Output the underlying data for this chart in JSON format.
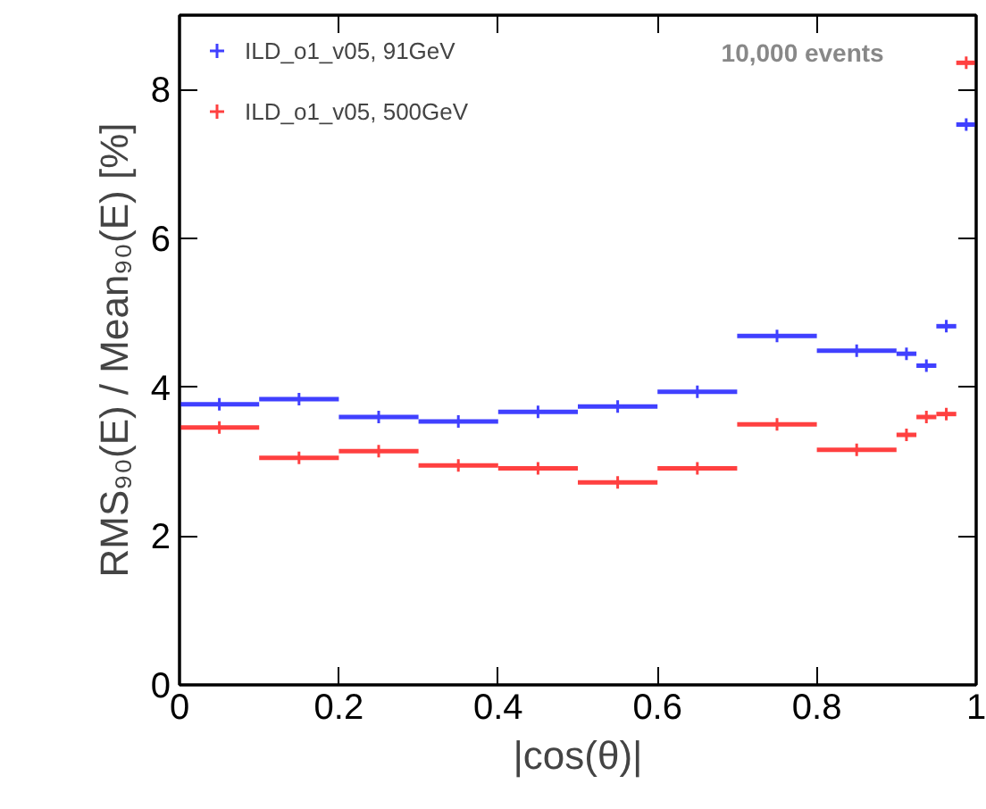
{
  "chart_data": {
    "type": "scatter",
    "xlabel": "|cos(θ)|",
    "ylabel": "RMS₉₀(E) / Mean₉₀(E) [%]",
    "annotations": [
      "10,000 events"
    ],
    "x": [
      0.05,
      0.15,
      0.25,
      0.35,
      0.45,
      0.55,
      0.65,
      0.75,
      0.85,
      0.9125,
      0.9375,
      0.9625,
      0.9875
    ],
    "series": [
      {
        "name": "ILD_o1_v05, 91GeV",
        "color": "#4040ff",
        "values": [
          3.77,
          3.84,
          3.6,
          3.54,
          3.67,
          3.74,
          3.94,
          4.69,
          4.49,
          4.45,
          4.29,
          4.82,
          7.53
        ],
        "xerrors": [
          0.05,
          0.05,
          0.05,
          0.05,
          0.05,
          0.05,
          0.05,
          0.05,
          0.05,
          0.0125,
          0.0125,
          0.0125,
          0.0125
        ]
      },
      {
        "name": "ILD_o1_v05, 500GeV",
        "color": "#ff4040",
        "values": [
          3.46,
          3.05,
          3.14,
          2.95,
          2.91,
          2.72,
          2.91,
          3.5,
          3.16,
          3.36,
          3.6,
          3.64,
          8.36
        ],
        "xerrors": [
          0.05,
          0.05,
          0.05,
          0.05,
          0.05,
          0.05,
          0.05,
          0.05,
          0.05,
          0.0125,
          0.0125,
          0.0125,
          0.0125
        ]
      }
    ],
    "marker": "cross",
    "legend": "top left",
    "grid": false,
    "xlim": [
      0,
      1
    ],
    "ylim": [
      0,
      9
    ],
    "xticks": [
      0,
      0.2,
      0.4,
      0.6,
      0.8,
      1
    ],
    "yticks": [
      0,
      2,
      4,
      6,
      8
    ]
  }
}
